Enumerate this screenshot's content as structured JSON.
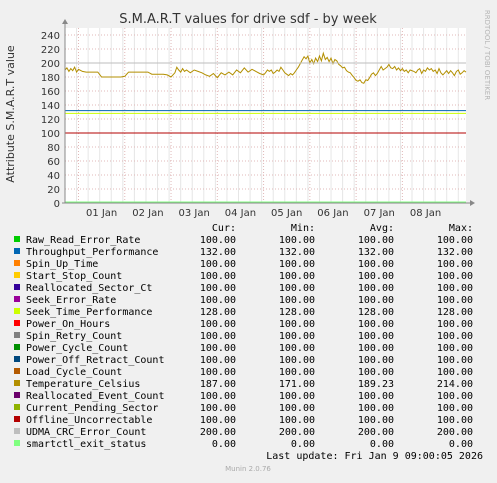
{
  "chart_data": {
    "type": "line",
    "title": "S.M.A.R.T values for drive sdf - by week",
    "ylabel": "Attribute S.M.A.R.T value",
    "ylim": [
      0,
      250
    ],
    "yticks": [
      0,
      20,
      40,
      60,
      80,
      100,
      120,
      140,
      160,
      180,
      200,
      220,
      240
    ],
    "xlim": [
      "2025-12-31T17:00",
      "2026-01-09T09:00"
    ],
    "xticks": [
      "01 Jan",
      "02 Jan",
      "03 Jan",
      "04 Jan",
      "05 Jan",
      "06 Jan",
      "07 Jan",
      "08 Jan"
    ],
    "grid": true,
    "legend_columns": [
      "Cur:",
      "Min:",
      "Avg:",
      "Max:"
    ],
    "series": [
      {
        "name": "Raw_Read_Error_Rate",
        "color": "#00cc00",
        "cur": "100.00",
        "min": "100.00",
        "avg": "100.00",
        "max": "100.00",
        "value": 100
      },
      {
        "name": "Throughput_Performance",
        "color": "#0066b3",
        "cur": "132.00",
        "min": "132.00",
        "avg": "132.00",
        "max": "132.00",
        "value": 132
      },
      {
        "name": "Spin_Up_Time",
        "color": "#ff8000",
        "cur": "100.00",
        "min": "100.00",
        "avg": "100.00",
        "max": "100.00",
        "value": 100
      },
      {
        "name": "Start_Stop_Count",
        "color": "#ffcc00",
        "cur": "100.00",
        "min": "100.00",
        "avg": "100.00",
        "max": "100.00",
        "value": 100
      },
      {
        "name": "Reallocated_Sector_Ct",
        "color": "#330099",
        "cur": "100.00",
        "min": "100.00",
        "avg": "100.00",
        "max": "100.00",
        "value": 100
      },
      {
        "name": "Seek_Error_Rate",
        "color": "#990099",
        "cur": "100.00",
        "min": "100.00",
        "avg": "100.00",
        "max": "100.00",
        "value": 100
      },
      {
        "name": "Seek_Time_Performance",
        "color": "#ccff00",
        "cur": "128.00",
        "min": "128.00",
        "avg": "128.00",
        "max": "128.00",
        "value": 128
      },
      {
        "name": "Power_On_Hours",
        "color": "#ff0000",
        "cur": "100.00",
        "min": "100.00",
        "avg": "100.00",
        "max": "100.00",
        "value": 100
      },
      {
        "name": "Spin_Retry_Count",
        "color": "#808080",
        "cur": "100.00",
        "min": "100.00",
        "avg": "100.00",
        "max": "100.00",
        "value": 100
      },
      {
        "name": "Power_Cycle_Count",
        "color": "#008f00",
        "cur": "100.00",
        "min": "100.00",
        "avg": "100.00",
        "max": "100.00",
        "value": 100
      },
      {
        "name": "Power_Off_Retract_Count",
        "color": "#00487d",
        "cur": "100.00",
        "min": "100.00",
        "avg": "100.00",
        "max": "100.00",
        "value": 100
      },
      {
        "name": "Load_Cycle_Count",
        "color": "#b35a00",
        "cur": "100.00",
        "min": "100.00",
        "avg": "100.00",
        "max": "100.00",
        "value": 100
      },
      {
        "name": "Temperature_Celsius",
        "color": "#b38f00",
        "cur": "187.00",
        "min": "171.00",
        "avg": "189.23",
        "max": "214.00",
        "value": 187,
        "points": [
          [
            "2025-12-31T17:00",
            190
          ],
          [
            "2025-12-31T18:00",
            193
          ],
          [
            "2025-12-31T19:00",
            188
          ],
          [
            "2025-12-31T20:00",
            192
          ],
          [
            "2025-12-31T21:00",
            189
          ],
          [
            "2025-12-31T22:00",
            194
          ],
          [
            "2025-12-31T23:00",
            187
          ],
          [
            "2026-01-01T00:00",
            191
          ],
          [
            "2026-01-01T02:00",
            188
          ],
          [
            "2026-01-01T04:00",
            187
          ],
          [
            "2026-01-01T06:00",
            187
          ],
          [
            "2026-01-01T08:00",
            187
          ],
          [
            "2026-01-01T10:00",
            187
          ],
          [
            "2026-01-01T12:00",
            180
          ],
          [
            "2026-01-01T14:00",
            180
          ],
          [
            "2026-01-01T16:00",
            180
          ],
          [
            "2026-01-01T18:00",
            180
          ],
          [
            "2026-01-01T20:00",
            180
          ],
          [
            "2026-01-01T22:00",
            180
          ],
          [
            "2026-01-02T00:00",
            181
          ],
          [
            "2026-01-02T02:00",
            187
          ],
          [
            "2026-01-02T04:00",
            187
          ],
          [
            "2026-01-02T06:00",
            187
          ],
          [
            "2026-01-02T08:00",
            187
          ],
          [
            "2026-01-02T10:00",
            187
          ],
          [
            "2026-01-02T12:00",
            187
          ],
          [
            "2026-01-02T14:00",
            184
          ],
          [
            "2026-01-02T16:00",
            184
          ],
          [
            "2026-01-02T18:00",
            184
          ],
          [
            "2026-01-02T20:00",
            184
          ],
          [
            "2026-01-02T22:00",
            183
          ],
          [
            "2026-01-03T00:00",
            180
          ],
          [
            "2026-01-03T02:00",
            186
          ],
          [
            "2026-01-03T03:00",
            194
          ],
          [
            "2026-01-03T04:00",
            190
          ],
          [
            "2026-01-03T05:00",
            187
          ],
          [
            "2026-01-03T06:00",
            192
          ],
          [
            "2026-01-03T07:00",
            188
          ],
          [
            "2026-01-03T08:00",
            190
          ],
          [
            "2026-01-03T10:00",
            186
          ],
          [
            "2026-01-03T12:00",
            190
          ],
          [
            "2026-01-03T14:00",
            188
          ],
          [
            "2026-01-03T16:00",
            186
          ],
          [
            "2026-01-03T18:00",
            183
          ],
          [
            "2026-01-03T20:00",
            181
          ],
          [
            "2026-01-03T22:00",
            185
          ],
          [
            "2026-01-04T00:00",
            179
          ],
          [
            "2026-01-04T02:00",
            186
          ],
          [
            "2026-01-04T04:00",
            183
          ],
          [
            "2026-01-04T06:00",
            187
          ],
          [
            "2026-01-04T08:00",
            183
          ],
          [
            "2026-01-04T10:00",
            190
          ],
          [
            "2026-01-04T12:00",
            186
          ],
          [
            "2026-01-04T14:00",
            193
          ],
          [
            "2026-01-04T16:00",
            187
          ],
          [
            "2026-01-04T18:00",
            191
          ],
          [
            "2026-01-04T20:00",
            188
          ],
          [
            "2026-01-04T22:00",
            185
          ],
          [
            "2026-01-05T00:00",
            183
          ],
          [
            "2026-01-05T01:00",
            186
          ],
          [
            "2026-01-05T02:00",
            190
          ],
          [
            "2026-01-05T03:00",
            188
          ],
          [
            "2026-01-05T04:00",
            190
          ],
          [
            "2026-01-05T05:00",
            185
          ],
          [
            "2026-01-05T06:00",
            187
          ],
          [
            "2026-01-05T07:00",
            190
          ],
          [
            "2026-01-05T08:00",
            188
          ],
          [
            "2026-01-05T09:00",
            194
          ],
          [
            "2026-01-05T10:00",
            190
          ],
          [
            "2026-01-05T11:00",
            186
          ],
          [
            "2026-01-05T12:00",
            184
          ],
          [
            "2026-01-05T13:00",
            182
          ],
          [
            "2026-01-05T14:00",
            185
          ],
          [
            "2026-01-05T15:00",
            183
          ],
          [
            "2026-01-05T16:00",
            186
          ],
          [
            "2026-01-05T17:00",
            190
          ],
          [
            "2026-01-05T18:00",
            194
          ],
          [
            "2026-01-05T19:00",
            199
          ],
          [
            "2026-01-05T20:00",
            204
          ],
          [
            "2026-01-05T21:00",
            209
          ],
          [
            "2026-01-05T22:00",
            206
          ],
          [
            "2026-01-05T23:00",
            210
          ],
          [
            "2026-01-06T00:00",
            200
          ],
          [
            "2026-01-06T01:00",
            205
          ],
          [
            "2026-01-06T02:00",
            199
          ],
          [
            "2026-01-06T03:00",
            207
          ],
          [
            "2026-01-06T04:00",
            202
          ],
          [
            "2026-01-06T05:00",
            210
          ],
          [
            "2026-01-06T06:00",
            203
          ],
          [
            "2026-01-06T07:00",
            214
          ],
          [
            "2026-01-06T08:00",
            205
          ],
          [
            "2026-01-06T09:00",
            208
          ],
          [
            "2026-01-06T10:00",
            202
          ],
          [
            "2026-01-06T11:00",
            207
          ],
          [
            "2026-01-06T12:00",
            199
          ],
          [
            "2026-01-06T13:00",
            205
          ],
          [
            "2026-01-06T14:00",
            203
          ],
          [
            "2026-01-06T15:00",
            198
          ],
          [
            "2026-01-06T16:00",
            196
          ],
          [
            "2026-01-06T17:00",
            193
          ],
          [
            "2026-01-06T18:00",
            194
          ],
          [
            "2026-01-06T19:00",
            189
          ],
          [
            "2026-01-06T20:00",
            187
          ],
          [
            "2026-01-06T21:00",
            186
          ],
          [
            "2026-01-06T22:00",
            182
          ],
          [
            "2026-01-06T23:00",
            179
          ],
          [
            "2026-01-07T00:00",
            175
          ],
          [
            "2026-01-07T01:00",
            174
          ],
          [
            "2026-01-07T02:00",
            176
          ],
          [
            "2026-01-07T03:00",
            172
          ],
          [
            "2026-01-07T04:00",
            171
          ],
          [
            "2026-01-07T05:00",
            176
          ],
          [
            "2026-01-07T06:00",
            175
          ],
          [
            "2026-01-07T07:00",
            179
          ],
          [
            "2026-01-07T08:00",
            184
          ],
          [
            "2026-01-07T09:00",
            186
          ],
          [
            "2026-01-07T10:00",
            182
          ],
          [
            "2026-01-07T11:00",
            185
          ],
          [
            "2026-01-07T12:00",
            190
          ],
          [
            "2026-01-07T13:00",
            195
          ],
          [
            "2026-01-07T14:00",
            190
          ],
          [
            "2026-01-07T15:00",
            192
          ],
          [
            "2026-01-07T16:00",
            194
          ],
          [
            "2026-01-07T17:00",
            198
          ],
          [
            "2026-01-07T18:00",
            193
          ],
          [
            "2026-01-07T19:00",
            192
          ],
          [
            "2026-01-07T20:00",
            195
          ],
          [
            "2026-01-07T21:00",
            190
          ],
          [
            "2026-01-07T22:00",
            193
          ],
          [
            "2026-01-07T23:00",
            189
          ],
          [
            "2026-01-08T00:00",
            192
          ],
          [
            "2026-01-08T01:00",
            188
          ],
          [
            "2026-01-08T02:00",
            190
          ],
          [
            "2026-01-08T03:00",
            186
          ],
          [
            "2026-01-08T04:00",
            190
          ],
          [
            "2026-01-08T06:00",
            188
          ],
          [
            "2026-01-08T07:00",
            186
          ],
          [
            "2026-01-08T08:00",
            190
          ],
          [
            "2026-01-08T09:00",
            192
          ],
          [
            "2026-01-08T10:00",
            185
          ],
          [
            "2026-01-08T11:00",
            190
          ],
          [
            "2026-01-08T12:00",
            188
          ],
          [
            "2026-01-08T13:00",
            193
          ],
          [
            "2026-01-08T14:00",
            190
          ],
          [
            "2026-01-08T15:00",
            192
          ],
          [
            "2026-01-08T16:00",
            188
          ],
          [
            "2026-01-08T17:00",
            190
          ],
          [
            "2026-01-08T18:00",
            185
          ],
          [
            "2026-01-08T19:00",
            192
          ],
          [
            "2026-01-08T20:00",
            186
          ],
          [
            "2026-01-08T21:00",
            183
          ],
          [
            "2026-01-08T22:00",
            186
          ],
          [
            "2026-01-08T23:00",
            189
          ],
          [
            "2026-01-09T00:00",
            185
          ],
          [
            "2026-01-09T01:00",
            189
          ],
          [
            "2026-01-09T02:00",
            186
          ],
          [
            "2026-01-09T03:00",
            182
          ],
          [
            "2026-01-09T04:00",
            188
          ],
          [
            "2026-01-09T05:00",
            190
          ],
          [
            "2026-01-09T06:00",
            184
          ],
          [
            "2026-01-09T07:00",
            186
          ],
          [
            "2026-01-09T08:00",
            189
          ],
          [
            "2026-01-09T09:00",
            187
          ]
        ]
      },
      {
        "name": "Reallocated_Event_Count",
        "color": "#6b006b",
        "cur": "100.00",
        "min": "100.00",
        "avg": "100.00",
        "max": "100.00",
        "value": 100
      },
      {
        "name": "Current_Pending_Sector",
        "color": "#8fb300",
        "cur": "100.00",
        "min": "100.00",
        "avg": "100.00",
        "max": "100.00",
        "value": 100
      },
      {
        "name": "Offline_Uncorrectable",
        "color": "#b30000",
        "cur": "100.00",
        "min": "100.00",
        "avg": "100.00",
        "max": "100.00",
        "value": 100
      },
      {
        "name": "UDMA_CRC_Error_Count",
        "color": "#bebebe",
        "cur": "200.00",
        "min": "200.00",
        "avg": "200.00",
        "max": "200.00",
        "value": 200
      },
      {
        "name": "smartctl_exit_status",
        "color": "#80ff80",
        "cur": "0.00",
        "min": "0.00",
        "avg": "0.00",
        "max": "0.00",
        "value": 0
      }
    ]
  },
  "footer": {
    "last_update": "Last update: Fri Jan  9 09:00:05 2026",
    "version": "Munin 2.0.76"
  },
  "watermark": "RRDTOOL / TOBI OETIKER"
}
